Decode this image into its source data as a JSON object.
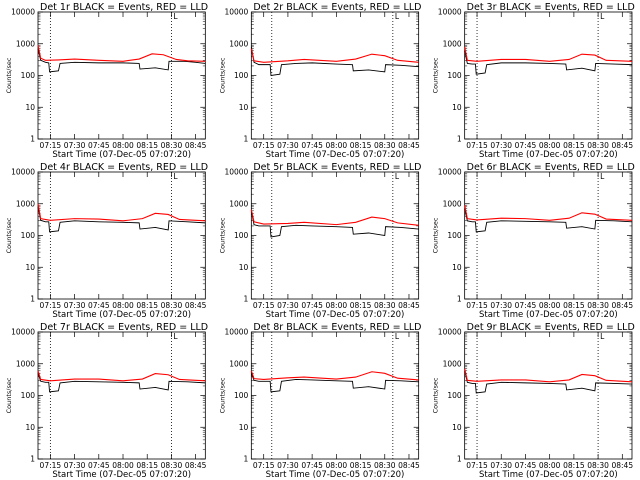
{
  "chart_data": [
    {
      "type": "line",
      "title": "Det 1r BLACK = Events, RED = LLD",
      "xlabel": "Start Time (07-Dec-05 07:07:20)",
      "ylabel": "Counts/sec",
      "yscale": "log",
      "ylim": [
        1,
        10000
      ],
      "xlim": [
        "07:07:20",
        "08:51:00"
      ],
      "x_ticks": [
        "07:15",
        "07:30",
        "07:45",
        "08:00",
        "08:15",
        "08:30",
        "08:45"
      ],
      "y_ticks": [
        "1",
        "10",
        "100",
        "1000",
        "10000"
      ],
      "marker_label": "L",
      "vlines": [
        "07:15",
        "08:30"
      ],
      "grid": false,
      "legend": "none",
      "series": [
        {
          "color": "#000000",
          "x": [
            "07:07:20",
            "07:09",
            "07:12",
            "07:14",
            "07:14:30",
            "07:20",
            "07:21",
            "07:30",
            "07:45",
            "08:00",
            "08:10",
            "08:10:30",
            "08:20",
            "08:28",
            "08:28:30",
            "08:38",
            "08:45",
            "08:51"
          ],
          "values": [
            700,
            300,
            260,
            250,
            130,
            140,
            240,
            260,
            250,
            250,
            240,
            160,
            175,
            150,
            280,
            280,
            260,
            240
          ]
        },
        {
          "color": "#ff0000",
          "x": [
            "07:07:20",
            "07:09",
            "07:12",
            "07:20",
            "07:30",
            "07:45",
            "08:00",
            "08:10",
            "08:18",
            "08:25",
            "08:33",
            "08:40",
            "08:51"
          ],
          "values": [
            900,
            350,
            300,
            310,
            330,
            300,
            280,
            330,
            480,
            450,
            320,
            290,
            280
          ]
        }
      ]
    },
    {
      "type": "line",
      "title": "Det 2r BLACK = Events, RED = LLD",
      "xlabel": "Start Time (07-Dec-05 07:07:20)",
      "ylabel": "Counts/sec",
      "yscale": "log",
      "ylim": [
        1,
        10000
      ],
      "xlim": [
        "07:07:20",
        "08:51:00"
      ],
      "x_ticks": [
        "07:15",
        "07:30",
        "07:45",
        "08:00",
        "08:15",
        "08:30",
        "08:45"
      ],
      "y_ticks": [
        "1",
        "10",
        "100",
        "1000",
        "10000"
      ],
      "marker_label": "L",
      "vlines": [
        "07:20",
        "08:35"
      ],
      "grid": false,
      "legend": "none",
      "series": [
        {
          "color": "#000000",
          "x": [
            "07:07:20",
            "07:09",
            "07:12",
            "07:19",
            "07:19:30",
            "07:25",
            "07:26",
            "07:35",
            "07:45",
            "08:00",
            "08:10",
            "08:10:30",
            "08:20",
            "08:30",
            "08:30:30",
            "08:40",
            "08:51"
          ],
          "values": [
            800,
            260,
            220,
            220,
            100,
            110,
            220,
            240,
            250,
            230,
            220,
            140,
            150,
            130,
            220,
            210,
            190
          ]
        },
        {
          "color": "#ff0000",
          "x": [
            "07:07:20",
            "07:09",
            "07:15",
            "07:30",
            "07:40",
            "08:00",
            "08:12",
            "08:22",
            "08:30",
            "08:38",
            "08:51"
          ],
          "values": [
            700,
            290,
            260,
            290,
            320,
            280,
            330,
            470,
            420,
            300,
            260
          ]
        }
      ]
    },
    {
      "type": "line",
      "title": "Det 3r BLACK = Events, RED = LLD",
      "xlabel": "Start Time (07-Dec-05 07:07:20)",
      "ylabel": "Counts/sec",
      "yscale": "log",
      "ylim": [
        1,
        10000
      ],
      "xlim": [
        "07:07:20",
        "08:51:00"
      ],
      "x_ticks": [
        "07:15",
        "07:30",
        "07:45",
        "08:00",
        "08:15",
        "08:30",
        "08:45"
      ],
      "y_ticks": [
        "1",
        "10",
        "100",
        "1000",
        "10000"
      ],
      "marker_label": "L",
      "vlines": [
        "07:15",
        "08:30"
      ],
      "grid": false,
      "legend": "none",
      "series": [
        {
          "color": "#000000",
          "x": [
            "07:07:20",
            "07:09",
            "07:12",
            "07:14",
            "07:14:30",
            "07:20",
            "07:21",
            "07:30",
            "07:45",
            "08:00",
            "08:10",
            "08:10:30",
            "08:20",
            "08:28",
            "08:28:30",
            "08:40",
            "08:51"
          ],
          "values": [
            600,
            240,
            230,
            230,
            110,
            120,
            220,
            250,
            250,
            240,
            230,
            150,
            170,
            140,
            240,
            230,
            220
          ]
        },
        {
          "color": "#ff0000",
          "x": [
            "07:07:20",
            "07:09",
            "07:15",
            "07:30",
            "07:45",
            "08:00",
            "08:12",
            "08:20",
            "08:28",
            "08:35",
            "08:51"
          ],
          "values": [
            800,
            300,
            280,
            320,
            320,
            280,
            320,
            470,
            440,
            300,
            280
          ]
        }
      ]
    },
    {
      "type": "line",
      "title": "Det 4r BLACK = Events, RED = LLD",
      "xlabel": "Start Time (07-Dec-05 07:07:20)",
      "ylabel": "Counts/sec",
      "yscale": "log",
      "ylim": [
        1,
        10000
      ],
      "xlim": [
        "07:07:20",
        "08:51:00"
      ],
      "x_ticks": [
        "07:15",
        "07:30",
        "07:45",
        "08:00",
        "08:15",
        "08:30",
        "08:45"
      ],
      "y_ticks": [
        "1",
        "10",
        "100",
        "1000",
        "10000"
      ],
      "marker_label": "L",
      "vlines": [
        "07:15",
        "08:30"
      ],
      "grid": false,
      "legend": "none",
      "series": [
        {
          "color": "#000000",
          "x": [
            "07:07:20",
            "07:09",
            "07:12",
            "07:14",
            "07:14:30",
            "07:20",
            "07:21",
            "07:30",
            "07:45",
            "08:00",
            "08:10",
            "08:10:30",
            "08:20",
            "08:28",
            "08:28:30",
            "08:40",
            "08:51"
          ],
          "values": [
            800,
            300,
            270,
            270,
            130,
            140,
            260,
            290,
            270,
            260,
            250,
            160,
            180,
            150,
            290,
            270,
            250
          ]
        },
        {
          "color": "#ff0000",
          "x": [
            "07:07:20",
            "07:09",
            "07:15",
            "07:30",
            "07:45",
            "08:00",
            "08:12",
            "08:20",
            "08:28",
            "08:35",
            "08:51"
          ],
          "values": [
            1000,
            340,
            300,
            340,
            330,
            290,
            340,
            500,
            460,
            320,
            290
          ]
        }
      ]
    },
    {
      "type": "line",
      "title": "Det 5r BLACK = Events, RED = LLD",
      "xlabel": "Start Time (07-Dec-05 07:07:20)",
      "ylabel": "Counts/sec",
      "yscale": "log",
      "ylim": [
        1,
        10000
      ],
      "xlim": [
        "07:07:20",
        "08:51:00"
      ],
      "x_ticks": [
        "07:15",
        "07:30",
        "07:45",
        "08:00",
        "08:15",
        "08:30",
        "08:45"
      ],
      "y_ticks": [
        "1",
        "10",
        "100",
        "1000",
        "10000"
      ],
      "marker_label": "L",
      "vlines": [
        "07:20",
        "08:35"
      ],
      "grid": false,
      "legend": "none",
      "series": [
        {
          "color": "#000000",
          "x": [
            "07:07:20",
            "07:09",
            "07:12",
            "07:19",
            "07:19:30",
            "07:25",
            "07:26",
            "07:35",
            "07:45",
            "08:00",
            "08:10",
            "08:10:30",
            "08:20",
            "08:30",
            "08:30:30",
            "08:40",
            "08:51"
          ],
          "values": [
            600,
            220,
            200,
            200,
            90,
            100,
            190,
            210,
            200,
            190,
            180,
            110,
            120,
            100,
            190,
            180,
            160
          ]
        },
        {
          "color": "#ff0000",
          "x": [
            "07:07:20",
            "07:09",
            "07:15",
            "07:30",
            "07:40",
            "08:00",
            "08:12",
            "08:22",
            "08:30",
            "08:38",
            "08:51"
          ],
          "values": [
            650,
            270,
            230,
            240,
            260,
            220,
            260,
            380,
            340,
            250,
            210
          ]
        }
      ]
    },
    {
      "type": "line",
      "title": "Det 6r BLACK = Events, RED = LLD",
      "xlabel": "Start Time (07-Dec-05 07:07:20)",
      "ylabel": "Counts/sec",
      "yscale": "log",
      "ylim": [
        1,
        10000
      ],
      "xlim": [
        "07:07:20",
        "08:51:00"
      ],
      "x_ticks": [
        "07:15",
        "07:30",
        "07:45",
        "08:00",
        "08:15",
        "08:30",
        "08:45"
      ],
      "y_ticks": [
        "1",
        "10",
        "100",
        "1000",
        "10000"
      ],
      "marker_label": "L",
      "vlines": [
        "07:15",
        "08:30"
      ],
      "grid": false,
      "legend": "none",
      "series": [
        {
          "color": "#000000",
          "x": [
            "07:07:20",
            "07:09",
            "07:12",
            "07:14",
            "07:14:30",
            "07:20",
            "07:21",
            "07:30",
            "07:45",
            "08:00",
            "08:10",
            "08:10:30",
            "08:20",
            "08:28",
            "08:28:30",
            "08:40",
            "08:51"
          ],
          "values": [
            700,
            290,
            270,
            270,
            130,
            140,
            260,
            290,
            280,
            270,
            260,
            170,
            190,
            160,
            300,
            290,
            270
          ]
        },
        {
          "color": "#ff0000",
          "x": [
            "07:07:20",
            "07:09",
            "07:15",
            "07:30",
            "07:45",
            "08:00",
            "08:12",
            "08:20",
            "08:28",
            "08:35",
            "08:51"
          ],
          "values": [
            900,
            340,
            310,
            350,
            340,
            300,
            350,
            520,
            470,
            330,
            300
          ]
        }
      ]
    },
    {
      "type": "line",
      "title": "Det 7r BLACK = Events, RED = LLD",
      "xlabel": "Start Time (07-Dec-05 07:07:20)",
      "ylabel": "Counts/sec",
      "yscale": "log",
      "ylim": [
        1,
        10000
      ],
      "xlim": [
        "07:07:20",
        "08:51:00"
      ],
      "x_ticks": [
        "07:15",
        "07:30",
        "07:45",
        "08:00",
        "08:15",
        "08:30",
        "08:45"
      ],
      "y_ticks": [
        "1",
        "10",
        "100",
        "1000",
        "10000"
      ],
      "marker_label": "L",
      "vlines": [
        "07:15",
        "08:30"
      ],
      "grid": false,
      "legend": "none",
      "series": [
        {
          "color": "#000000",
          "x": [
            "07:07:20",
            "07:09",
            "07:12",
            "07:14",
            "07:14:30",
            "07:20",
            "07:21",
            "07:30",
            "07:45",
            "08:00",
            "08:10",
            "08:10:30",
            "08:20",
            "08:28",
            "08:28:30",
            "08:40",
            "08:51"
          ],
          "values": [
            500,
            280,
            260,
            260,
            130,
            140,
            250,
            280,
            270,
            260,
            250,
            160,
            180,
            150,
            280,
            270,
            250
          ]
        },
        {
          "color": "#ff0000",
          "x": [
            "07:07:20",
            "07:09",
            "07:15",
            "07:30",
            "07:45",
            "08:00",
            "08:12",
            "08:20",
            "08:28",
            "08:35",
            "08:51"
          ],
          "values": [
            600,
            320,
            290,
            330,
            330,
            290,
            330,
            490,
            450,
            320,
            290
          ]
        }
      ]
    },
    {
      "type": "line",
      "title": "Det 8r BLACK = Events, RED = LLD",
      "xlabel": "Start Time (07-Dec-05 07:07:20)",
      "ylabel": "Counts/sec",
      "yscale": "log",
      "ylim": [
        1,
        10000
      ],
      "xlim": [
        "07:07:20",
        "08:51:00"
      ],
      "x_ticks": [
        "07:15",
        "07:30",
        "07:45",
        "08:00",
        "08:15",
        "08:30",
        "08:45"
      ],
      "y_ticks": [
        "1",
        "10",
        "100",
        "1000",
        "10000"
      ],
      "marker_label": "L",
      "vlines": [
        "07:20",
        "08:35"
      ],
      "grid": false,
      "legend": "none",
      "series": [
        {
          "color": "#000000",
          "x": [
            "07:07:20",
            "07:09",
            "07:12",
            "07:19",
            "07:19:30",
            "07:25",
            "07:26",
            "07:35",
            "07:45",
            "08:00",
            "08:10",
            "08:10:30",
            "08:20",
            "08:30",
            "08:30:30",
            "08:40",
            "08:51"
          ],
          "values": [
            500,
            300,
            280,
            280,
            130,
            140,
            280,
            320,
            310,
            290,
            280,
            170,
            190,
            160,
            300,
            290,
            270
          ]
        },
        {
          "color": "#ff0000",
          "x": [
            "07:07:20",
            "07:09",
            "07:15",
            "07:30",
            "07:40",
            "08:00",
            "08:12",
            "08:22",
            "08:30",
            "08:38",
            "08:51"
          ],
          "values": [
            600,
            340,
            320,
            360,
            380,
            330,
            380,
            560,
            500,
            350,
            310
          ]
        }
      ]
    },
    {
      "type": "line",
      "title": "Det 9r BLACK = Events, RED = LLD",
      "xlabel": "Start Time (07-Dec-05 07:07:20)",
      "ylabel": "Counts/sec",
      "yscale": "log",
      "ylim": [
        1,
        10000
      ],
      "xlim": [
        "07:07:20",
        "08:51:00"
      ],
      "x_ticks": [
        "07:15",
        "07:30",
        "07:45",
        "08:00",
        "08:15",
        "08:30",
        "08:45"
      ],
      "y_ticks": [
        "1",
        "10",
        "100",
        "1000",
        "10000"
      ],
      "marker_label": "L",
      "vlines": [
        "07:15",
        "08:30"
      ],
      "grid": false,
      "legend": "none",
      "series": [
        {
          "color": "#000000",
          "x": [
            "07:07:20",
            "07:09",
            "07:12",
            "07:14",
            "07:14:30",
            "07:20",
            "07:21",
            "07:30",
            "07:45",
            "08:00",
            "08:10",
            "08:10:30",
            "08:20",
            "08:28",
            "08:28:30",
            "08:40",
            "08:51"
          ],
          "values": [
            600,
            260,
            240,
            240,
            120,
            130,
            230,
            260,
            250,
            240,
            230,
            150,
            170,
            140,
            250,
            240,
            230
          ]
        },
        {
          "color": "#ff0000",
          "x": [
            "07:07:20",
            "07:09",
            "07:15",
            "07:30",
            "07:45",
            "08:00",
            "08:12",
            "08:20",
            "08:28",
            "08:35",
            "08:51"
          ],
          "values": [
            700,
            300,
            280,
            310,
            310,
            270,
            310,
            460,
            420,
            300,
            270
          ]
        }
      ]
    }
  ]
}
